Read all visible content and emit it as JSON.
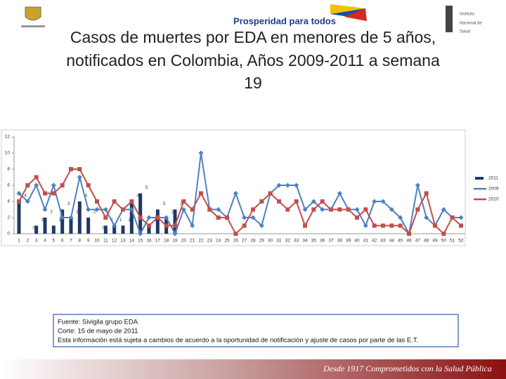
{
  "header": {
    "brand": "Prosperidad para todos",
    "institute": [
      "Instituto",
      "Nacional de",
      "Salud"
    ]
  },
  "title_lines": [
    "Casos de muertes por EDA en menores de 5 años,",
    "notificados en Colombia, Años 2009-2011 a semana",
    "19"
  ],
  "chart_data": {
    "type": "bar_line",
    "categories": [
      "1",
      "2",
      "3",
      "4",
      "5",
      "6",
      "7",
      "8",
      "9",
      "10",
      "11",
      "12",
      "13",
      "14",
      "15",
      "16",
      "17",
      "18",
      "19",
      "20",
      "21",
      "22",
      "23",
      "24",
      "25",
      "26",
      "27",
      "28",
      "29",
      "30",
      "31",
      "32",
      "33",
      "34",
      "35",
      "36",
      "37",
      "38",
      "39",
      "40",
      "41",
      "42",
      "43",
      "44",
      "45",
      "46",
      "47",
      "48",
      "49",
      "50",
      "51",
      "52"
    ],
    "ylim": [
      0,
      12
    ],
    "yticks": [
      0,
      2,
      4,
      6,
      8,
      10,
      12
    ],
    "series": [
      {
        "name": "2011",
        "kind": "bar",
        "color": "#1f3864",
        "values": [
          4,
          0,
          1,
          2,
          1,
          3,
          2,
          4,
          2,
          0,
          1,
          1,
          1,
          4,
          5,
          1,
          3,
          2,
          3,
          null,
          null,
          null,
          null,
          null,
          null,
          null,
          null,
          null,
          null,
          null,
          null,
          null,
          null,
          null,
          null,
          null,
          null,
          null,
          null,
          null,
          null,
          null,
          null,
          null,
          null,
          null,
          null,
          null,
          null,
          null,
          null,
          null
        ]
      },
      {
        "name": "2009",
        "kind": "line",
        "color": "#4f81bd",
        "marker": "diamond",
        "values": [
          5,
          4,
          6,
          3,
          6,
          2,
          2,
          7,
          3,
          3,
          3,
          1,
          3,
          3,
          0,
          2,
          2,
          2,
          0,
          3,
          1,
          10,
          3,
          3,
          2,
          5,
          2,
          2,
          1,
          5,
          6,
          6,
          6,
          3,
          4,
          3,
          3,
          5,
          3,
          3,
          1,
          4,
          4,
          3,
          2,
          0,
          6,
          2,
          1,
          3,
          2,
          2
        ]
      },
      {
        "name": "2010",
        "kind": "line",
        "color": "#c0504d",
        "marker": "square",
        "values": [
          4,
          6,
          7,
          5,
          5,
          6,
          8,
          8,
          6,
          4,
          2,
          4,
          3,
          4,
          2,
          1,
          2,
          1,
          1,
          4,
          3,
          5,
          3,
          2,
          2,
          0,
          1,
          3,
          4,
          5,
          4,
          3,
          4,
          1,
          3,
          4,
          3,
          3,
          3,
          2,
          3,
          1,
          1,
          1,
          1,
          0,
          3,
          5,
          1,
          0,
          2,
          1
        ]
      }
    ]
  },
  "source": [
    "Fuente: Sivigila grupo EDA",
    "Corte: 15 de mayo de 2011",
    "Esta información está sujeta a cambios de acuerdo a la oportunidad de notificación y ajuste de casos por parte de las E.T."
  ],
  "footer": "Desde 1917 Comprometidos con la Salud Pública"
}
